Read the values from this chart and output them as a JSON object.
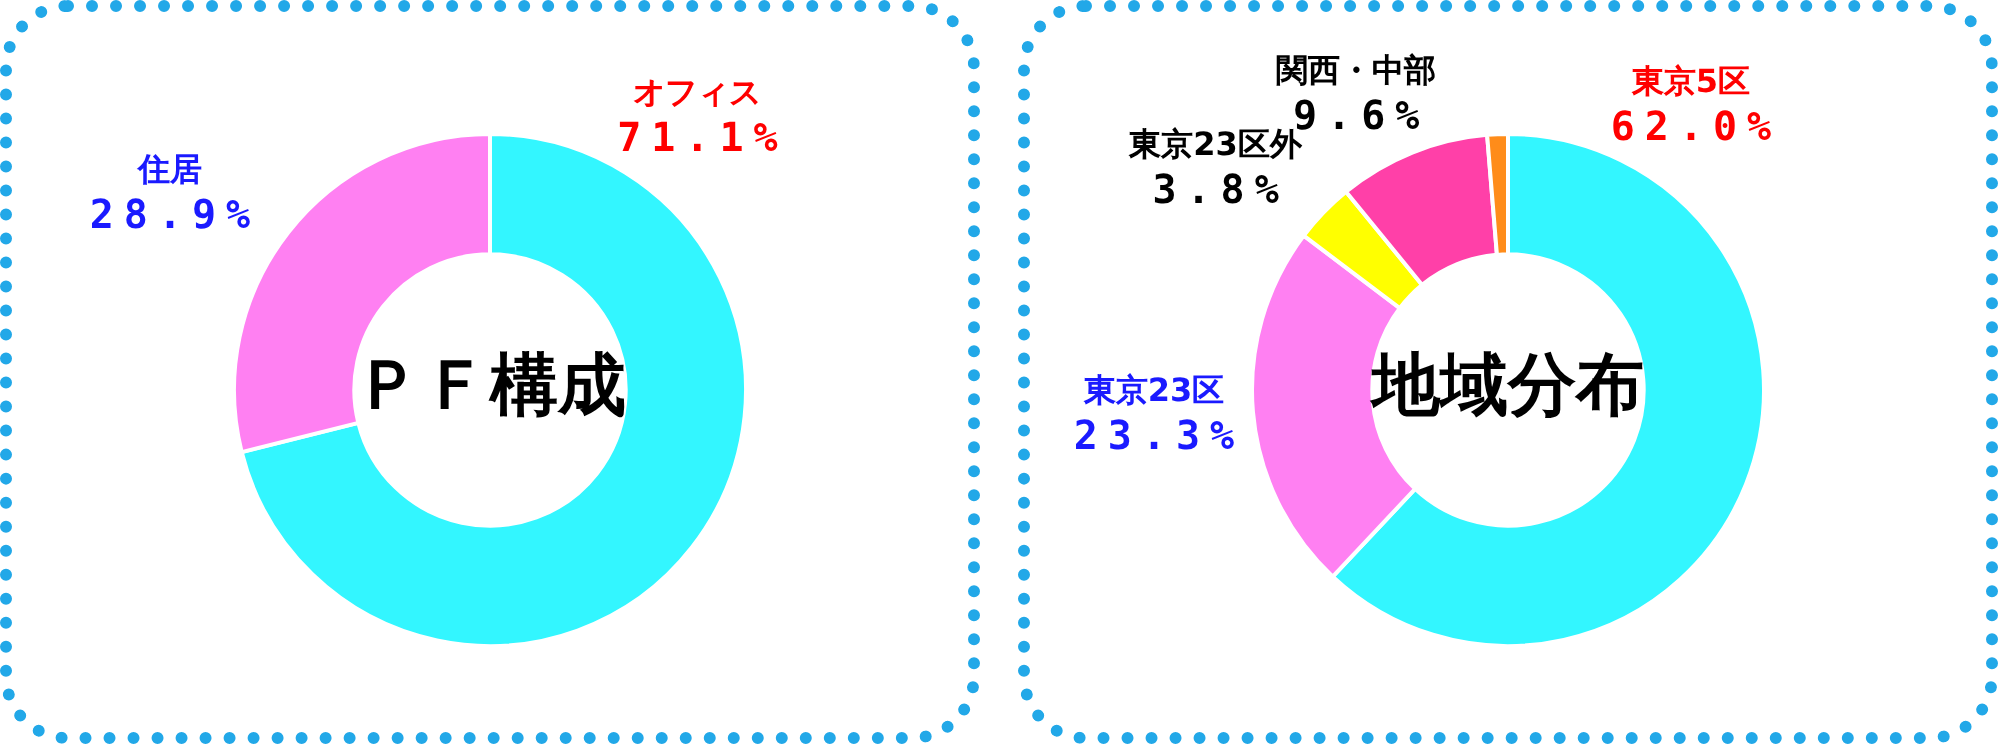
{
  "chart_data": [
    {
      "type": "donut",
      "title": "ＰＦ構成",
      "categories": [
        "オフィス",
        "住居"
      ],
      "values": [
        71.1,
        28.9
      ],
      "colors": [
        "#33f6ff",
        "#ff80f2"
      ],
      "value_labels": [
        "71.1%",
        "28.9%"
      ],
      "legend": false
    },
    {
      "type": "donut",
      "title": "地域分布",
      "categories": [
        "東京5区",
        "東京23区",
        "東京23区外",
        "関西・中部",
        null
      ],
      "values": [
        62.0,
        23.3,
        3.8,
        9.6,
        1.3
      ],
      "colors": [
        "#33f6ff",
        "#ff80f2",
        "#ffff00",
        "#ff40a8",
        "#ff8c1a"
      ],
      "value_labels": [
        "62.0%",
        "23.3%",
        "3.8%",
        "9.6%",
        null
      ],
      "legend": false
    }
  ]
}
